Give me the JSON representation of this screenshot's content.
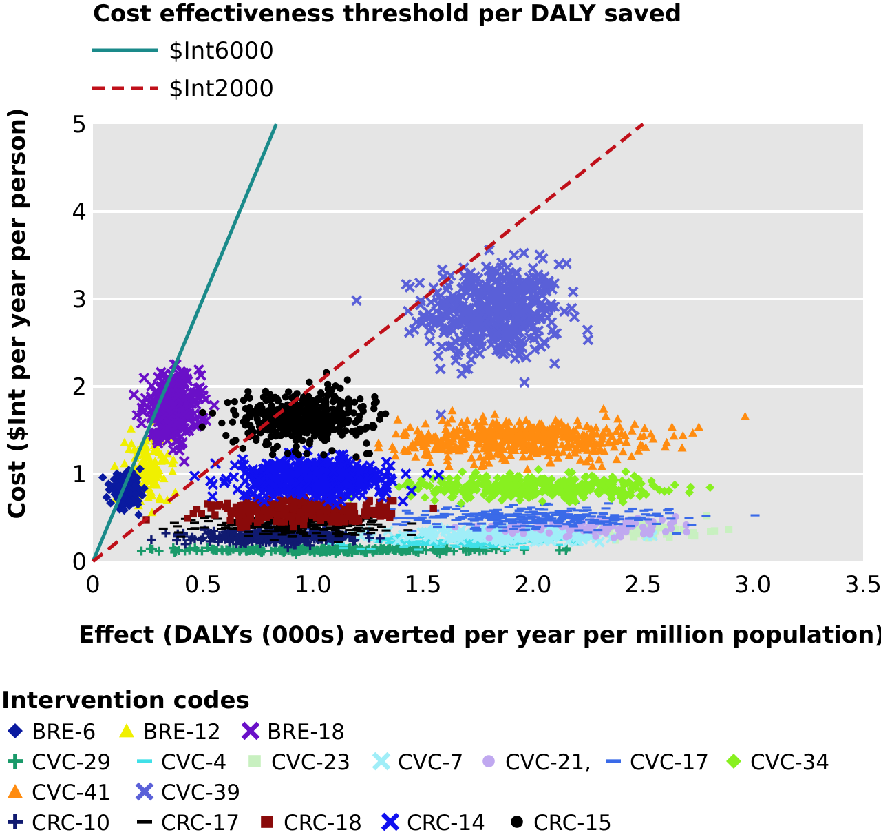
{
  "chart_data": {
    "type": "scatter",
    "title": "",
    "xlabel": "Effect (DALYs (000s) averted per year per million population)",
    "ylabel": "Cost ($Int per year per person)",
    "xlim": [
      0,
      3.5
    ],
    "ylim": [
      0,
      5
    ],
    "xticks": [
      "0",
      "0.5",
      "1.0",
      "1.5",
      "2.0",
      "2.5",
      "3.0",
      "3.5"
    ],
    "yticks": [
      "0",
      "1",
      "2",
      "3",
      "4",
      "5"
    ],
    "grid": "horizontal",
    "threshold_legend": {
      "title": "Cost effectiveness threshold per DALY saved",
      "lines": [
        {
          "name": "$Int6000",
          "color": "#1a8a8a",
          "style": "solid",
          "slope_cost_per_effect": 6.0
        },
        {
          "name": "$Int2000",
          "color": "#c0101a",
          "style": "dashed",
          "slope_cost_per_effect": 2.0
        }
      ]
    },
    "legend": {
      "title": "Intervention codes",
      "rows": [
        [
          "BRE-6",
          "BRE-12",
          "BRE-18"
        ],
        [
          "CVC-29",
          "CVC-4",
          "CVC-23",
          "CVC-7",
          "CVC-21,",
          "CVC-17",
          "CVC-34"
        ],
        [
          "CVC-41",
          "CVC-39"
        ],
        [
          "CRC-10",
          "CRC-17",
          "CRC-18",
          "CRC-14",
          "CRC-15"
        ]
      ]
    },
    "series": [
      {
        "name": "BRE-6",
        "marker": "diamond",
        "color": "#0a1aa0",
        "center": [
          0.15,
          0.82
        ],
        "spread": [
          0.05,
          0.12
        ],
        "n": 160
      },
      {
        "name": "BRE-12",
        "marker": "triangle",
        "color": "#f0f000",
        "center": [
          0.25,
          1.05
        ],
        "spread": [
          0.07,
          0.28
        ],
        "n": 140
      },
      {
        "name": "BRE-18",
        "marker": "x",
        "color": "#6a10c8",
        "center": [
          0.36,
          1.75
        ],
        "spread": [
          0.09,
          0.28
        ],
        "n": 320
      },
      {
        "name": "CVC-29",
        "marker": "plus",
        "color": "#1a9a6a",
        "center": [
          1.1,
          0.13
        ],
        "spread": [
          0.5,
          0.02
        ],
        "n": 260
      },
      {
        "name": "CVC-4",
        "marker": "dash",
        "color": "#40e0e8",
        "center": [
          1.65,
          0.22
        ],
        "spread": [
          0.35,
          0.05
        ],
        "n": 160
      },
      {
        "name": "CVC-23",
        "marker": "square",
        "color": "#c8f0c0",
        "center": [
          2.5,
          0.35
        ],
        "spread": [
          0.25,
          0.07
        ],
        "n": 60
      },
      {
        "name": "CVC-7",
        "marker": "x",
        "color": "#a0eef8",
        "center": [
          1.9,
          0.3
        ],
        "spread": [
          0.4,
          0.06
        ],
        "n": 150
      },
      {
        "name": "CVC-21,",
        "marker": "circle",
        "color": "#c0a8f0",
        "center": [
          2.3,
          0.4
        ],
        "spread": [
          0.35,
          0.08
        ],
        "n": 110
      },
      {
        "name": "CVC-17",
        "marker": "dash",
        "color": "#3a6ae8",
        "center": [
          2.0,
          0.5
        ],
        "spread": [
          0.45,
          0.09
        ],
        "n": 300
      },
      {
        "name": "CVC-34",
        "marker": "diamond",
        "color": "#88f020",
        "center": [
          2.0,
          0.85
        ],
        "spread": [
          0.4,
          0.1
        ],
        "n": 360
      },
      {
        "name": "CVC-41",
        "marker": "triangle",
        "color": "#ff8c10",
        "center": [
          1.95,
          1.4
        ],
        "spread": [
          0.4,
          0.17
        ],
        "n": 480
      },
      {
        "name": "CVC-39",
        "marker": "x",
        "color": "#5a60d8",
        "center": [
          1.82,
          2.85
        ],
        "spread": [
          0.22,
          0.4
        ],
        "n": 460
      },
      {
        "name": "CRC-10",
        "marker": "plus",
        "color": "#101a70",
        "center": [
          0.85,
          0.28
        ],
        "spread": [
          0.25,
          0.05
        ],
        "n": 320
      },
      {
        "name": "CRC-17",
        "marker": "dash",
        "color": "#000000",
        "center": [
          0.9,
          0.42
        ],
        "spread": [
          0.3,
          0.08
        ],
        "n": 260
      },
      {
        "name": "CRC-18",
        "marker": "square",
        "color": "#8a0a0a",
        "center": [
          0.95,
          0.58
        ],
        "spread": [
          0.28,
          0.1
        ],
        "n": 300
      },
      {
        "name": "CRC-14",
        "marker": "x",
        "color": "#1010f0",
        "center": [
          1.0,
          0.95
        ],
        "spread": [
          0.25,
          0.15
        ],
        "n": 460
      },
      {
        "name": "CRC-15",
        "marker": "circle",
        "color": "#000000",
        "center": [
          0.95,
          1.65
        ],
        "spread": [
          0.22,
          0.22
        ],
        "n": 420
      }
    ]
  }
}
